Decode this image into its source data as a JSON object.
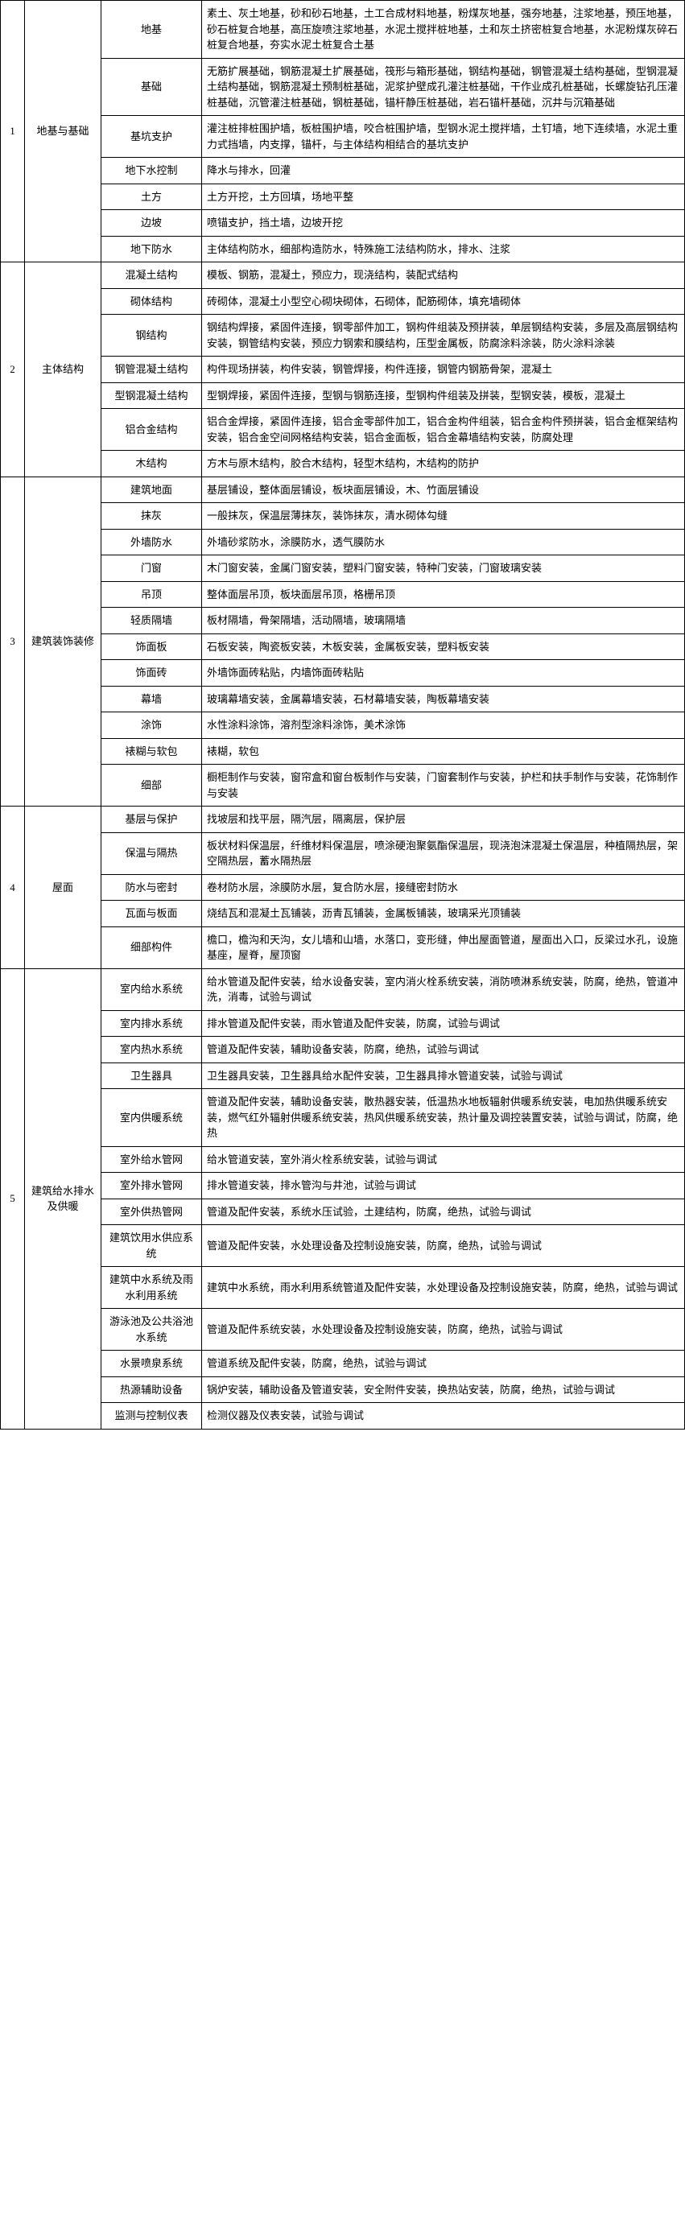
{
  "table": {
    "border_color": "#000000",
    "background_color": "#ffffff",
    "font_size": 13,
    "sections": [
      {
        "num": "1",
        "cat1": "地基与基础",
        "rows": [
          {
            "cat2": "地基",
            "detail": "素土、灰土地基，砂和砂石地基，土工合成材料地基，粉煤灰地基，强夯地基，注浆地基，预压地基，砂石桩复合地基，高压旋喷注浆地基，水泥土搅拌桩地基，土和灰土挤密桩复合地基，水泥粉煤灰碎石桩复合地基，夯实水泥土桩复合土基"
          },
          {
            "cat2": "基础",
            "detail": "无筋扩展基础，钢筋混凝土扩展基础，筏形与箱形基础，钢结构基础，钢管混凝土结构基础，型钢混凝土结构基础，钢筋混凝土预制桩基础，泥浆护壁成孔灌注桩基础，干作业成孔桩基础，长螺旋钻孔压灌桩基础，沉管灌注桩基础，钢桩基础，锚杆静压桩基础，岩石锚杆基础，沉井与沉箱基础"
          },
          {
            "cat2": "基坑支护",
            "detail": "灌注桩排桩围护墙，板桩围护墙，咬合桩围护墙，型钢水泥土搅拌墙，土钉墙，地下连续墙，水泥土重力式挡墙，内支撑，锚杆，与主体结构相结合的基坑支护"
          },
          {
            "cat2": "地下水控制",
            "detail": "降水与排水，回灌"
          },
          {
            "cat2": "土方",
            "detail": "土方开挖，土方回填，场地平整"
          },
          {
            "cat2": "边坡",
            "detail": "喷锚支护，挡土墙，边坡开挖"
          },
          {
            "cat2": "地下防水",
            "detail": "主体结构防水，细部构造防水，特殊施工法结构防水，排水、注浆"
          }
        ]
      },
      {
        "num": "2",
        "cat1": "主体结构",
        "rows": [
          {
            "cat2": "混凝土结构",
            "detail": "模板、钢筋，混凝土，预应力，现浇结构，装配式结构"
          },
          {
            "cat2": "砌体结构",
            "detail": "砖砌体，混凝土小型空心砌块砌体，石砌体，配筋砌体，填充墙砌体"
          },
          {
            "cat2": "钢结构",
            "detail": "钢结构焊接，紧固件连接，钢零部件加工，钢构件组装及预拼装，单层钢结构安装，多层及高层钢结构安装，钢管结构安装，预应力钢索和膜结构，压型金属板，防腐涂料涂装，防火涂料涂装"
          },
          {
            "cat2": "钢管混凝土结构",
            "detail": "构件现场拼装，构件安装，钢管焊接，构件连接，钢管内钢筋骨架，混凝土"
          },
          {
            "cat2": "型钢混凝土结构",
            "detail": "型钢焊接，紧固件连接，型钢与钢筋连接，型钢构件组装及拼装，型钢安装，模板，混凝土"
          },
          {
            "cat2": "铝合金结构",
            "detail": "铝合金焊接，紧固件连接，铝合金零部件加工，铝合金构件组装，铝合金构件预拼装，铝合金框架结构安装，铝合金空间网格结构安装，铝合金面板，铝合金幕墙结构安装，防腐处理"
          },
          {
            "cat2": "木结构",
            "detail": "方木与原木结构，胶合木结构，轻型木结构，木结构的防护"
          }
        ]
      },
      {
        "num": "3",
        "cat1": "建筑装饰装修",
        "rows": [
          {
            "cat2": "建筑地面",
            "detail": "基层铺设，整体面层铺设，板块面层铺设，木、竹面层铺设"
          },
          {
            "cat2": "抹灰",
            "detail": "一般抹灰，保温层薄抹灰，装饰抹灰，清水砌体勾缝"
          },
          {
            "cat2": "外墙防水",
            "detail": "外墙砂浆防水，涂膜防水，透气膜防水"
          },
          {
            "cat2": "门窗",
            "detail": "木门窗安装，金属门窗安装，塑料门窗安装，特种门安装，门窗玻璃安装"
          },
          {
            "cat2": "吊顶",
            "detail": "整体面层吊顶，板块面层吊顶，格栅吊顶"
          },
          {
            "cat2": "轻质隔墙",
            "detail": "板材隔墙，骨架隔墙，活动隔墙，玻璃隔墙"
          },
          {
            "cat2": "饰面板",
            "detail": "石板安装，陶瓷板安装，木板安装，金属板安装，塑料板安装"
          },
          {
            "cat2": "饰面砖",
            "detail": "外墙饰面砖粘贴，内墙饰面砖粘贴"
          },
          {
            "cat2": "幕墙",
            "detail": "玻璃幕墙安装，金属幕墙安装，石材幕墙安装，陶板幕墙安装"
          },
          {
            "cat2": "涂饰",
            "detail": "水性涂料涂饰，溶剂型涂料涂饰，美术涂饰"
          },
          {
            "cat2": "裱糊与软包",
            "detail": "裱糊，软包"
          },
          {
            "cat2": "细部",
            "detail": "橱柜制作与安装，窗帘盒和窗台板制作与安装，门窗套制作与安装，护栏和扶手制作与安装，花饰制作与安装"
          }
        ]
      },
      {
        "num": "4",
        "cat1": "屋面",
        "rows": [
          {
            "cat2": "基层与保护",
            "detail": "找坡层和找平层，隔汽层，隔离层，保护层"
          },
          {
            "cat2": "保温与隔热",
            "detail": "板状材料保温层，纤维材料保温层，喷涂硬泡聚氨酯保温层，现浇泡沫混凝土保温层，种植隔热层，架空隔热层，蓄水隔热层"
          },
          {
            "cat2": "防水与密封",
            "detail": "卷材防水层，涂膜防水层，复合防水层，接缝密封防水"
          },
          {
            "cat2": "瓦面与板面",
            "detail": "烧结瓦和混凝土瓦铺装，沥青瓦铺装，金属板铺装，玻璃采光顶铺装"
          },
          {
            "cat2": "细部构件",
            "detail": "檐口，檐沟和天沟，女儿墙和山墙，水落口，变形缝，伸出屋面管道，屋面出入口，反梁过水孔，设施基座，屋脊，屋顶窗"
          }
        ]
      },
      {
        "num": "5",
        "cat1": "建筑给水排水及供暖",
        "rows": [
          {
            "cat2": "室内给水系统",
            "detail": "给水管道及配件安装，给水设备安装，室内消火栓系统安装，消防喷淋系统安装，防腐，绝热，管道冲洗，消毒，试验与调试"
          },
          {
            "cat2": "室内排水系统",
            "detail": "排水管道及配件安装，雨水管道及配件安装，防腐，试验与调试"
          },
          {
            "cat2": "室内热水系统",
            "detail": "管道及配件安装，辅助设备安装，防腐，绝热，试验与调试"
          },
          {
            "cat2": "卫生器具",
            "detail": "卫生器具安装，卫生器具给水配件安装，卫生器具排水管道安装，试验与调试"
          },
          {
            "cat2": "室内供暖系统",
            "detail": "管道及配件安装，辅助设备安装，散热器安装，低温热水地板辐射供暖系统安装，电加热供暖系统安装，燃气红外辐射供暖系统安装，热风供暖系统安装，热计量及调控装置安装，试验与调试，防腐，绝热"
          },
          {
            "cat2": "室外给水管网",
            "detail": "给水管道安装，室外消火栓系统安装，试验与调试"
          },
          {
            "cat2": "室外排水管网",
            "detail": "排水管道安装，排水管沟与井池，试验与调试"
          },
          {
            "cat2": "室外供热管网",
            "detail": "管道及配件安装，系统水压试验，土建结构，防腐，绝热，试验与调试"
          },
          {
            "cat2": "建筑饮用水供应系统",
            "detail": "管道及配件安装，水处理设备及控制设施安装，防腐，绝热，试验与调试"
          },
          {
            "cat2": "建筑中水系统及雨水利用系统",
            "detail": "建筑中水系统，雨水利用系统管道及配件安装，水处理设备及控制设施安装，防腐，绝热，试验与调试"
          },
          {
            "cat2": "游泳池及公共浴池水系统",
            "detail": "管道及配件系统安装，水处理设备及控制设施安装，防腐，绝热，试验与调试"
          },
          {
            "cat2": "水景喷泉系统",
            "detail": "管道系统及配件安装，防腐，绝热，试验与调试"
          },
          {
            "cat2": "热源辅助设备",
            "detail": "锅炉安装，辅助设备及管道安装，安全附件安装，换热站安装，防腐，绝热，试验与调试"
          },
          {
            "cat2": "监测与控制仪表",
            "detail": "检测仪器及仪表安装，试验与调试"
          }
        ]
      }
    ]
  }
}
